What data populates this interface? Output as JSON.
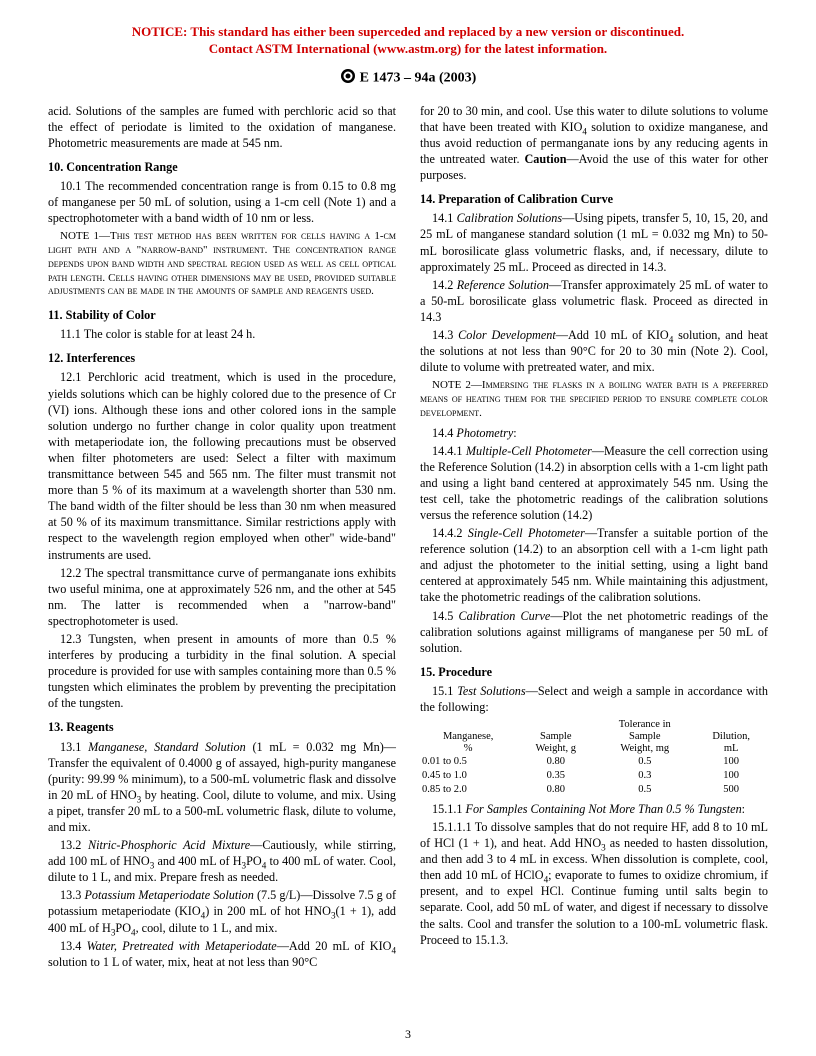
{
  "notice": {
    "line1": "NOTICE: This standard has either been superceded and replaced by a new version or discontinued.",
    "line2": "Contact ASTM International (www.astm.org) for the latest information."
  },
  "header": "E 1473 – 94a (2003)",
  "col1": {
    "intro": "acid. Solutions of the samples are fumed with perchloric acid so that the effect of periodate is limited to the oxidation of manganese. Photometric measurements are made at 545 nm.",
    "s10_title": "10. Concentration Range",
    "s10_1": "10.1 The recommended concentration range is from 0.15 to 0.8 mg of manganese per 50 mL of solution, using a 1-cm cell (Note 1) and a spectrophotometer with a band width of 10 nm or less.",
    "note1": "NOTE 1—This test method has been written for cells having a 1-cm light path and a \"narrow-band\" instrument. The concentration range depends upon band width and spectral region used as well as cell optical path length. Cells having other dimensions may be used, provided suitable adjustments can be made in the amounts of sample and reagents used.",
    "s11_title": "11. Stability of Color",
    "s11_1": "11.1 The color is stable for at least 24 h.",
    "s12_title": "12. Interferences",
    "s12_1": "12.1 Perchloric acid treatment, which is used in the procedure, yields solutions which can be highly colored due to the presence of Cr (VI) ions. Although these ions and other colored ions in the sample solution undergo no further change in color quality upon treatment with metaperiodate ion, the following precautions must be observed when filter photometers are used: Select a filter with maximum transmittance between 545 and 565 nm. The filter must transmit not more than 5 % of its maximum at a wavelength shorter than 530 nm. The band width of the filter should be less than 30 nm when measured at 50 % of its maximum transmittance. Similar restrictions apply with respect to the wavelength region employed when other\" wide-band\" instruments are used.",
    "s12_2": "12.2 The spectral transmittance curve of permanganate ions exhibits two useful minima, one at approximately 526 nm, and the other at 545 nm. The latter is recommended when a \"narrow-band\" spectrophotometer is used.",
    "s12_3": "12.3 Tungsten, when present in amounts of more than 0.5 % interferes by producing a turbidity in the final solution. A special procedure is provided for use with samples containing more than 0.5 % tungsten which eliminates the problem by preventing the precipitation of the tungsten.",
    "s13_title": "13. Reagents",
    "s13_1_a": "13.1 ",
    "s13_1_em": "Manganese, Standard Solution",
    "s13_1_b": " (1 mL = 0.032 mg Mn)—Transfer the equivalent of 0.4000 g of assayed, high-purity manganese (purity: 99.99 % minimum), to a 500-mL volumetric flask and dissolve in 20 mL of HNO",
    "s13_1_c": " by heating. Cool, dilute to volume, and mix. Using a pipet, transfer 20 mL to a 500-mL volumetric flask, dilute to volume, and mix.",
    "s13_2_a": "13.2 ",
    "s13_2_em": "Nitric-Phosphoric Acid Mixture",
    "s13_2_b": "—Cautiously, while stirring, add 100 mL of HNO",
    "s13_2_c": " and 400 mL of H",
    "s13_2_d": "PO",
    "s13_2_e": " to 400 mL of water. Cool, dilute to 1 L, and mix. Prepare fresh as needed.",
    "s13_3_a": "13.3 ",
    "s13_3_em": "Potassium Metaperiodate Solution",
    "s13_3_b": " (7.5 g/L)—Dissolve 7.5 g of potassium metaperiodate (KIO",
    "s13_3_c": ") in 200 mL of hot HNO",
    "s13_3_d": "(1 + 1), add 400 mL of H",
    "s13_3_e": "PO",
    "s13_3_f": ", cool, dilute to 1 L, and mix.",
    "s13_4_a": "13.4 ",
    "s13_4_em": "Water, Pretreated with Metaperiodate",
    "s13_4_b": "—Add 20 mL of KIO",
    "s13_4_c": " solution to 1 L of water, mix, heat at not less than 90°C"
  },
  "col2": {
    "cont": "for 20 to 30 min, and cool. Use this water to dilute solutions to volume that have been treated with KIO",
    "cont_b": " solution to oxidize manganese, and thus avoid reduction of permanganate ions by any reducing agents in the untreated water. ",
    "cont_caution": "Caution",
    "cont_c": "—Avoid the use of this water for other purposes.",
    "s14_title": "14. Preparation of Calibration Curve",
    "s14_1_a": "14.1 ",
    "s14_1_em": "Calibration Solutions",
    "s14_1_b": "—Using pipets, transfer 5, 10, 15, 20, and 25 mL of manganese standard solution (1 mL = 0.032 mg Mn) to 50-mL borosilicate glass volumetric flasks, and, if necessary, dilute to approximately 25 mL. Proceed as directed in 14.3.",
    "s14_2_a": "14.2 ",
    "s14_2_em": "Reference Solution",
    "s14_2_b": "—Transfer approximately 25 mL of water to a 50-mL borosilicate glass volumetric flask. Proceed as directed in 14.3",
    "s14_3_a": "14.3 ",
    "s14_3_em": "Color Development",
    "s14_3_b": "—Add 10 mL of KIO",
    "s14_3_c": " solution, and heat the solutions at not less than 90°C for 20 to 30 min (Note 2). Cool, dilute to volume with pretreated water, and mix.",
    "note2": "NOTE 2—Immersing the flasks in a boiling water bath is a preferred means of heating them for the specified period to ensure complete color development.",
    "s14_4_a": "14.4 ",
    "s14_4_em": "Photometry",
    "s14_4_b": ":",
    "s14_4_1_a": "14.4.1 ",
    "s14_4_1_em": "Multiple-Cell Photometer",
    "s14_4_1_b": "—Measure the cell correction using the Reference Solution (14.2) in absorption cells with a 1-cm light path and using a light band centered at approximately 545 nm. Using the test cell, take the photometric readings of the calibration solutions versus the reference solution (14.2)",
    "s14_4_2_a": "14.4.2 ",
    "s14_4_2_em": "Single-Cell Photometer",
    "s14_4_2_b": "—Transfer a suitable portion of the reference solution (14.2) to an absorption cell with a 1-cm light path and adjust the photometer to the initial setting, using a light band centered at approximately 545 nm. While maintaining this adjustment, take the photometric readings of the calibration solutions.",
    "s14_5_a": "14.5 ",
    "s14_5_em": "Calibration Curve",
    "s14_5_b": "—Plot the net photometric readings of the calibration solutions against milligrams of manganese per 50 mL of solution.",
    "s15_title": "15. Procedure",
    "s15_1_a": "15.1 ",
    "s15_1_em": "Test Solutions",
    "s15_1_b": "—Select and weigh a sample in accordance with the following:",
    "table": {
      "headers": [
        "Manganese,\n%",
        "Sample\nWeight, g",
        "Tolerance in\nSample\nWeight, mg",
        "Dilution,\nmL"
      ],
      "rows": [
        [
          "0.01 to 0.5",
          "0.80",
          "0.5",
          "100"
        ],
        [
          "0.45 to 1.0",
          "0.35",
          "0.3",
          "100"
        ],
        [
          "0.85 to 2.0",
          "0.80",
          "0.5",
          "500"
        ]
      ]
    },
    "s15_1_1_a": "15.1.1 ",
    "s15_1_1_em": "For Samples Containing Not More Than 0.5 % Tungsten",
    "s15_1_1_b": ":",
    "s15_1_1_1": "15.1.1.1 To dissolve samples that do not require HF, add 8 to 10 mL of HCl (1 + 1), and heat. Add HNO",
    "s15_1_1_1_b": " as needed to hasten dissolution, and then add 3 to 4 mL in excess. When dissolution is complete, cool, then add 10 mL of HClO",
    "s15_1_1_1_c": "; evaporate to fumes to oxidize chromium, if present, and to expel HCl. Continue fuming until salts begin to separate. Cool, add 50 mL of water, and digest if necessary to dissolve the salts. Cool and transfer the solution to a 100-mL volumetric flask. Proceed to 15.1.3."
  },
  "pagenum": "3"
}
